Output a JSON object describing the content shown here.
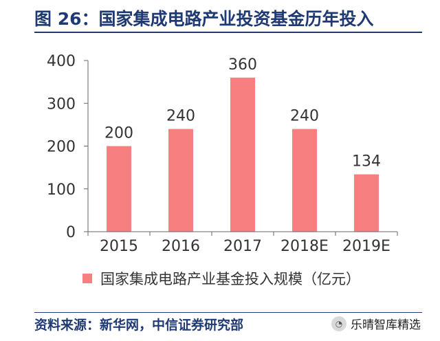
{
  "header": {
    "title": "图 26：国家集成电路产业投资基金历年投入"
  },
  "chart_data": {
    "type": "bar",
    "categories": [
      "2015",
      "2016",
      "2017",
      "2018E",
      "2019E"
    ],
    "series": [
      {
        "name": "国家集成电路产业基金投入规模（亿元）",
        "values": [
          200,
          240,
          360,
          240,
          134
        ],
        "color": "#f87f7f"
      }
    ],
    "yticks": [
      "0",
      "100",
      "200",
      "300",
      "400"
    ],
    "ylim": [
      0,
      400
    ],
    "grid": false,
    "legend": "bottom"
  },
  "footer": {
    "source": "资料来源：新华网，中信证券研究部",
    "brand": "乐晴智库精选",
    "brand_icon": "wechat-icon"
  }
}
